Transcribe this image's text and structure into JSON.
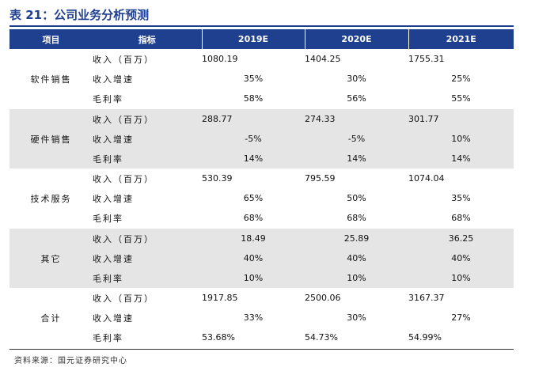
{
  "title": "表 21：公司业务分析预测",
  "headers": [
    "项目",
    "指标",
    "2019E",
    "2020E",
    "2021E"
  ],
  "groups": [
    {
      "name": "软件销售",
      "rows": [
        {
          "metric": "收入（百万）",
          "values": [
            "1080.19",
            "1404.25",
            "1755.31"
          ]
        },
        {
          "metric": "收入增速",
          "values": [
            "35%",
            "30%",
            "25%"
          ]
        },
        {
          "metric": "毛利率",
          "values": [
            "58%",
            "56%",
            "55%"
          ]
        }
      ]
    },
    {
      "name": "硬件销售",
      "rows": [
        {
          "metric": "收入（百万）",
          "values": [
            "288.77",
            "274.33",
            "301.77"
          ]
        },
        {
          "metric": "收入增速",
          "values": [
            "-5%",
            "-5%",
            "10%"
          ]
        },
        {
          "metric": "毛利率",
          "values": [
            "14%",
            "14%",
            "14%"
          ]
        }
      ]
    },
    {
      "name": "技术服务",
      "rows": [
        {
          "metric": "收入（百万）",
          "values": [
            "530.39",
            "795.59",
            "1074.04"
          ]
        },
        {
          "metric": "收入增速",
          "values": [
            "65%",
            "50%",
            "35%"
          ]
        },
        {
          "metric": "毛利率",
          "values": [
            "68%",
            "68%",
            "68%"
          ]
        }
      ]
    },
    {
      "name": "其它",
      "rows": [
        {
          "metric": "收入（百万）",
          "values": [
            "18.49",
            "25.89",
            "36.25"
          ]
        },
        {
          "metric": "收入增速",
          "values": [
            "40%",
            "40%",
            "40%"
          ]
        },
        {
          "metric": "毛利率",
          "values": [
            "10%",
            "10%",
            "10%"
          ]
        }
      ]
    },
    {
      "name": "合计",
      "rows": [
        {
          "metric": "收入（百万）",
          "values": [
            "1917.85",
            "2500.06",
            "3167.37"
          ]
        },
        {
          "metric": "收入增速",
          "values": [
            "33%",
            "30%",
            "27%"
          ]
        },
        {
          "metric": "毛利率",
          "values": [
            "53.68%",
            "54.73%",
            "54.99%"
          ]
        }
      ]
    }
  ],
  "source": "资料来源：国元证券研究中心",
  "colors": {
    "header_bg": "#1f3f8f",
    "stripe": "#e5e5e5"
  }
}
